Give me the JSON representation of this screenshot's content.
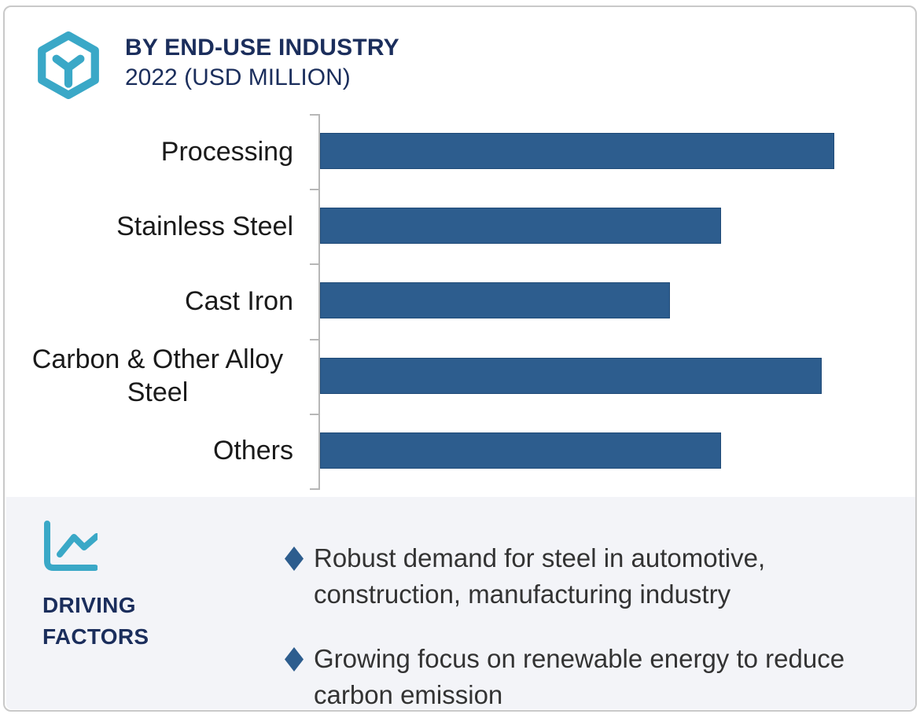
{
  "header": {
    "title": "BY END-USE INDUSTRY",
    "subtitle": "2022 (USD MILLION)",
    "logo_icon": "hexagon-cube-icon"
  },
  "chart_data": {
    "type": "bar",
    "orientation": "horizontal",
    "title": "BY END-USE INDUSTRY",
    "subtitle": "2022 (USD MILLION)",
    "categories": [
      "Processing",
      "Stainless Steel",
      "Cast Iron",
      "Carbon & Other Alloy Steel",
      "Others"
    ],
    "values": [
      100,
      78,
      68,
      97.5,
      78
    ],
    "value_scale_note": "relative bar lengths; numeric axis values not shown in image",
    "xlim": [
      0,
      116
    ],
    "xlabel": "",
    "ylabel": "",
    "grid": false,
    "legend": false,
    "bar_color": "#2d5d8e",
    "axis_color": "#b7b7b7"
  },
  "driving_factors": {
    "icon": "line-chart-icon",
    "label_line1": "DRIVING",
    "label_line2": "FACTORS",
    "bullet_marker": "diamond",
    "bullets": [
      {
        "lines": [
          "Robust demand for steel in automotive,",
          "construction, manufacturing industry"
        ]
      },
      {
        "lines": [
          "Growing focus on renewable energy to reduce",
          "carbon emission"
        ]
      }
    ]
  },
  "colors": {
    "teal_accent": "#3aa8c7",
    "navy": "#1b2e5c",
    "bar_blue": "#2d5d8e",
    "footer_background": "#f3f4f8",
    "bullet_text": "#333333",
    "card_border": "#c9c9c9",
    "category_label_color": "#1a1a1a"
  }
}
